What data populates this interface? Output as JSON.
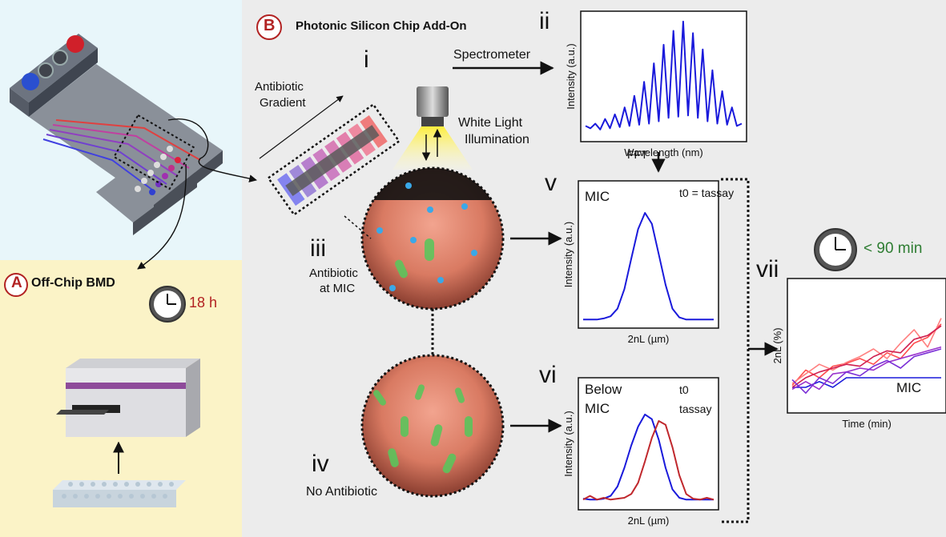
{
  "panel_a": {
    "letter": "A",
    "title": "Off-Chip BMD",
    "time": "18 h"
  },
  "panel_b": {
    "letter": "B",
    "title": "Photonic Silicon Chip Add-On"
  },
  "labels": {
    "i": "i",
    "ii": "ii",
    "iii": "iii",
    "iv": "iv",
    "v": "v",
    "vi": "vi",
    "vii": "vii",
    "antibiotic_gradient_1": "Antibiotic",
    "antibiotic_gradient_2": "Gradient",
    "spectrometer": "Spectrometer",
    "white_light_1": "White Light",
    "white_light_2": "Illumination",
    "antibiotic_mic_1": "Antibiotic",
    "antibiotic_mic_2": "at MIC",
    "no_antibiotic": "No Antibiotic",
    "fft": "FFT",
    "vii_time": "< 90 min"
  },
  "colors": {
    "blue_series": "#1a1adb",
    "red_series": "#c0282d",
    "time_green": "#2e7d32",
    "time_red": "#b22222",
    "panel_blue_bg": "#e8f6fa",
    "panel_yellow_bg": "#fbf3c7",
    "panel_gray_bg": "#ececec"
  },
  "chart_data": [
    {
      "id": "ii",
      "type": "line",
      "xlabel": "Wavelength (nm)",
      "ylabel": "Intensity (a.u.)",
      "series": [
        {
          "values": [
            0.08,
            0.06,
            0.1,
            0.05,
            0.14,
            0.06,
            0.18,
            0.07,
            0.24,
            0.08,
            0.34,
            0.09,
            0.46,
            0.1,
            0.62,
            0.12,
            0.78,
            0.15,
            0.9,
            0.16,
            0.98,
            0.17,
            0.88,
            0.15,
            0.74,
            0.12,
            0.56,
            0.1,
            0.38,
            0.09,
            0.24,
            0.08,
            0.1
          ]
        }
      ]
    },
    {
      "id": "v",
      "type": "line",
      "xlabel": "2nL (µm)",
      "ylabel": "Intensity (a.u.)",
      "title": "MIC",
      "legend": [
        {
          "name": "t0 = tassay",
          "color": "#1a1adb"
        }
      ],
      "series": [
        {
          "values": [
            0.02,
            0.02,
            0.02,
            0.03,
            0.05,
            0.12,
            0.3,
            0.58,
            0.85,
            1.0,
            0.9,
            0.62,
            0.34,
            0.12,
            0.04,
            0.02,
            0.02,
            0.02,
            0.02,
            0.02
          ]
        }
      ]
    },
    {
      "id": "vi",
      "type": "line",
      "xlabel": "2nL (µm)",
      "ylabel": "Intensity (a.u.)",
      "title_lines": [
        "Below",
        "MIC"
      ],
      "legend": [
        {
          "name": "t0",
          "color": "#1a1adb"
        },
        {
          "name": "tassay",
          "color": "#c0282d"
        }
      ],
      "series": [
        {
          "name": "t0",
          "color": "#1a1adb",
          "values": [
            0.05,
            0.04,
            0.04,
            0.05,
            0.08,
            0.18,
            0.38,
            0.62,
            0.82,
            0.95,
            0.9,
            0.68,
            0.38,
            0.15,
            0.06,
            0.04,
            0.04,
            0.04,
            0.04,
            0.04
          ]
        },
        {
          "name": "tassay",
          "color": "#c0282d",
          "values": [
            0.04,
            0.08,
            0.04,
            0.06,
            0.04,
            0.05,
            0.06,
            0.1,
            0.22,
            0.45,
            0.7,
            0.88,
            0.84,
            0.6,
            0.3,
            0.1,
            0.05,
            0.04,
            0.06,
            0.04
          ]
        }
      ]
    },
    {
      "id": "vii",
      "type": "line",
      "xlabel": "Time (min)",
      "ylabel": "2nL (%)",
      "annotation": "MIC",
      "series": [
        {
          "color": "#1a1adb",
          "values": [
            0.2,
            0.2,
            0.26,
            0.2,
            0.3,
            0.3,
            0.3,
            0.3,
            0.3,
            0.3,
            0.3,
            0.3
          ]
        },
        {
          "color": "#ff4d4d",
          "values": [
            0.22,
            0.38,
            0.3,
            0.42,
            0.45,
            0.5,
            0.44,
            0.56,
            0.5,
            0.66,
            0.72,
            0.86
          ]
        },
        {
          "color": "#ff8080",
          "values": [
            0.24,
            0.34,
            0.44,
            0.38,
            0.46,
            0.52,
            0.6,
            0.5,
            0.66,
            0.8,
            0.62,
            0.92
          ]
        },
        {
          "color": "#d02050",
          "values": [
            0.2,
            0.3,
            0.36,
            0.4,
            0.44,
            0.42,
            0.52,
            0.58,
            0.56,
            0.7,
            0.74,
            0.84
          ]
        },
        {
          "color": "#9a32cd",
          "values": [
            0.18,
            0.26,
            0.18,
            0.34,
            0.36,
            0.4,
            0.38,
            0.46,
            0.5,
            0.54,
            0.58,
            0.62
          ]
        },
        {
          "color": "#7b2fd6",
          "values": [
            0.28,
            0.14,
            0.3,
            0.24,
            0.36,
            0.32,
            0.42,
            0.48,
            0.4,
            0.52,
            0.56,
            0.6
          ]
        }
      ]
    }
  ]
}
